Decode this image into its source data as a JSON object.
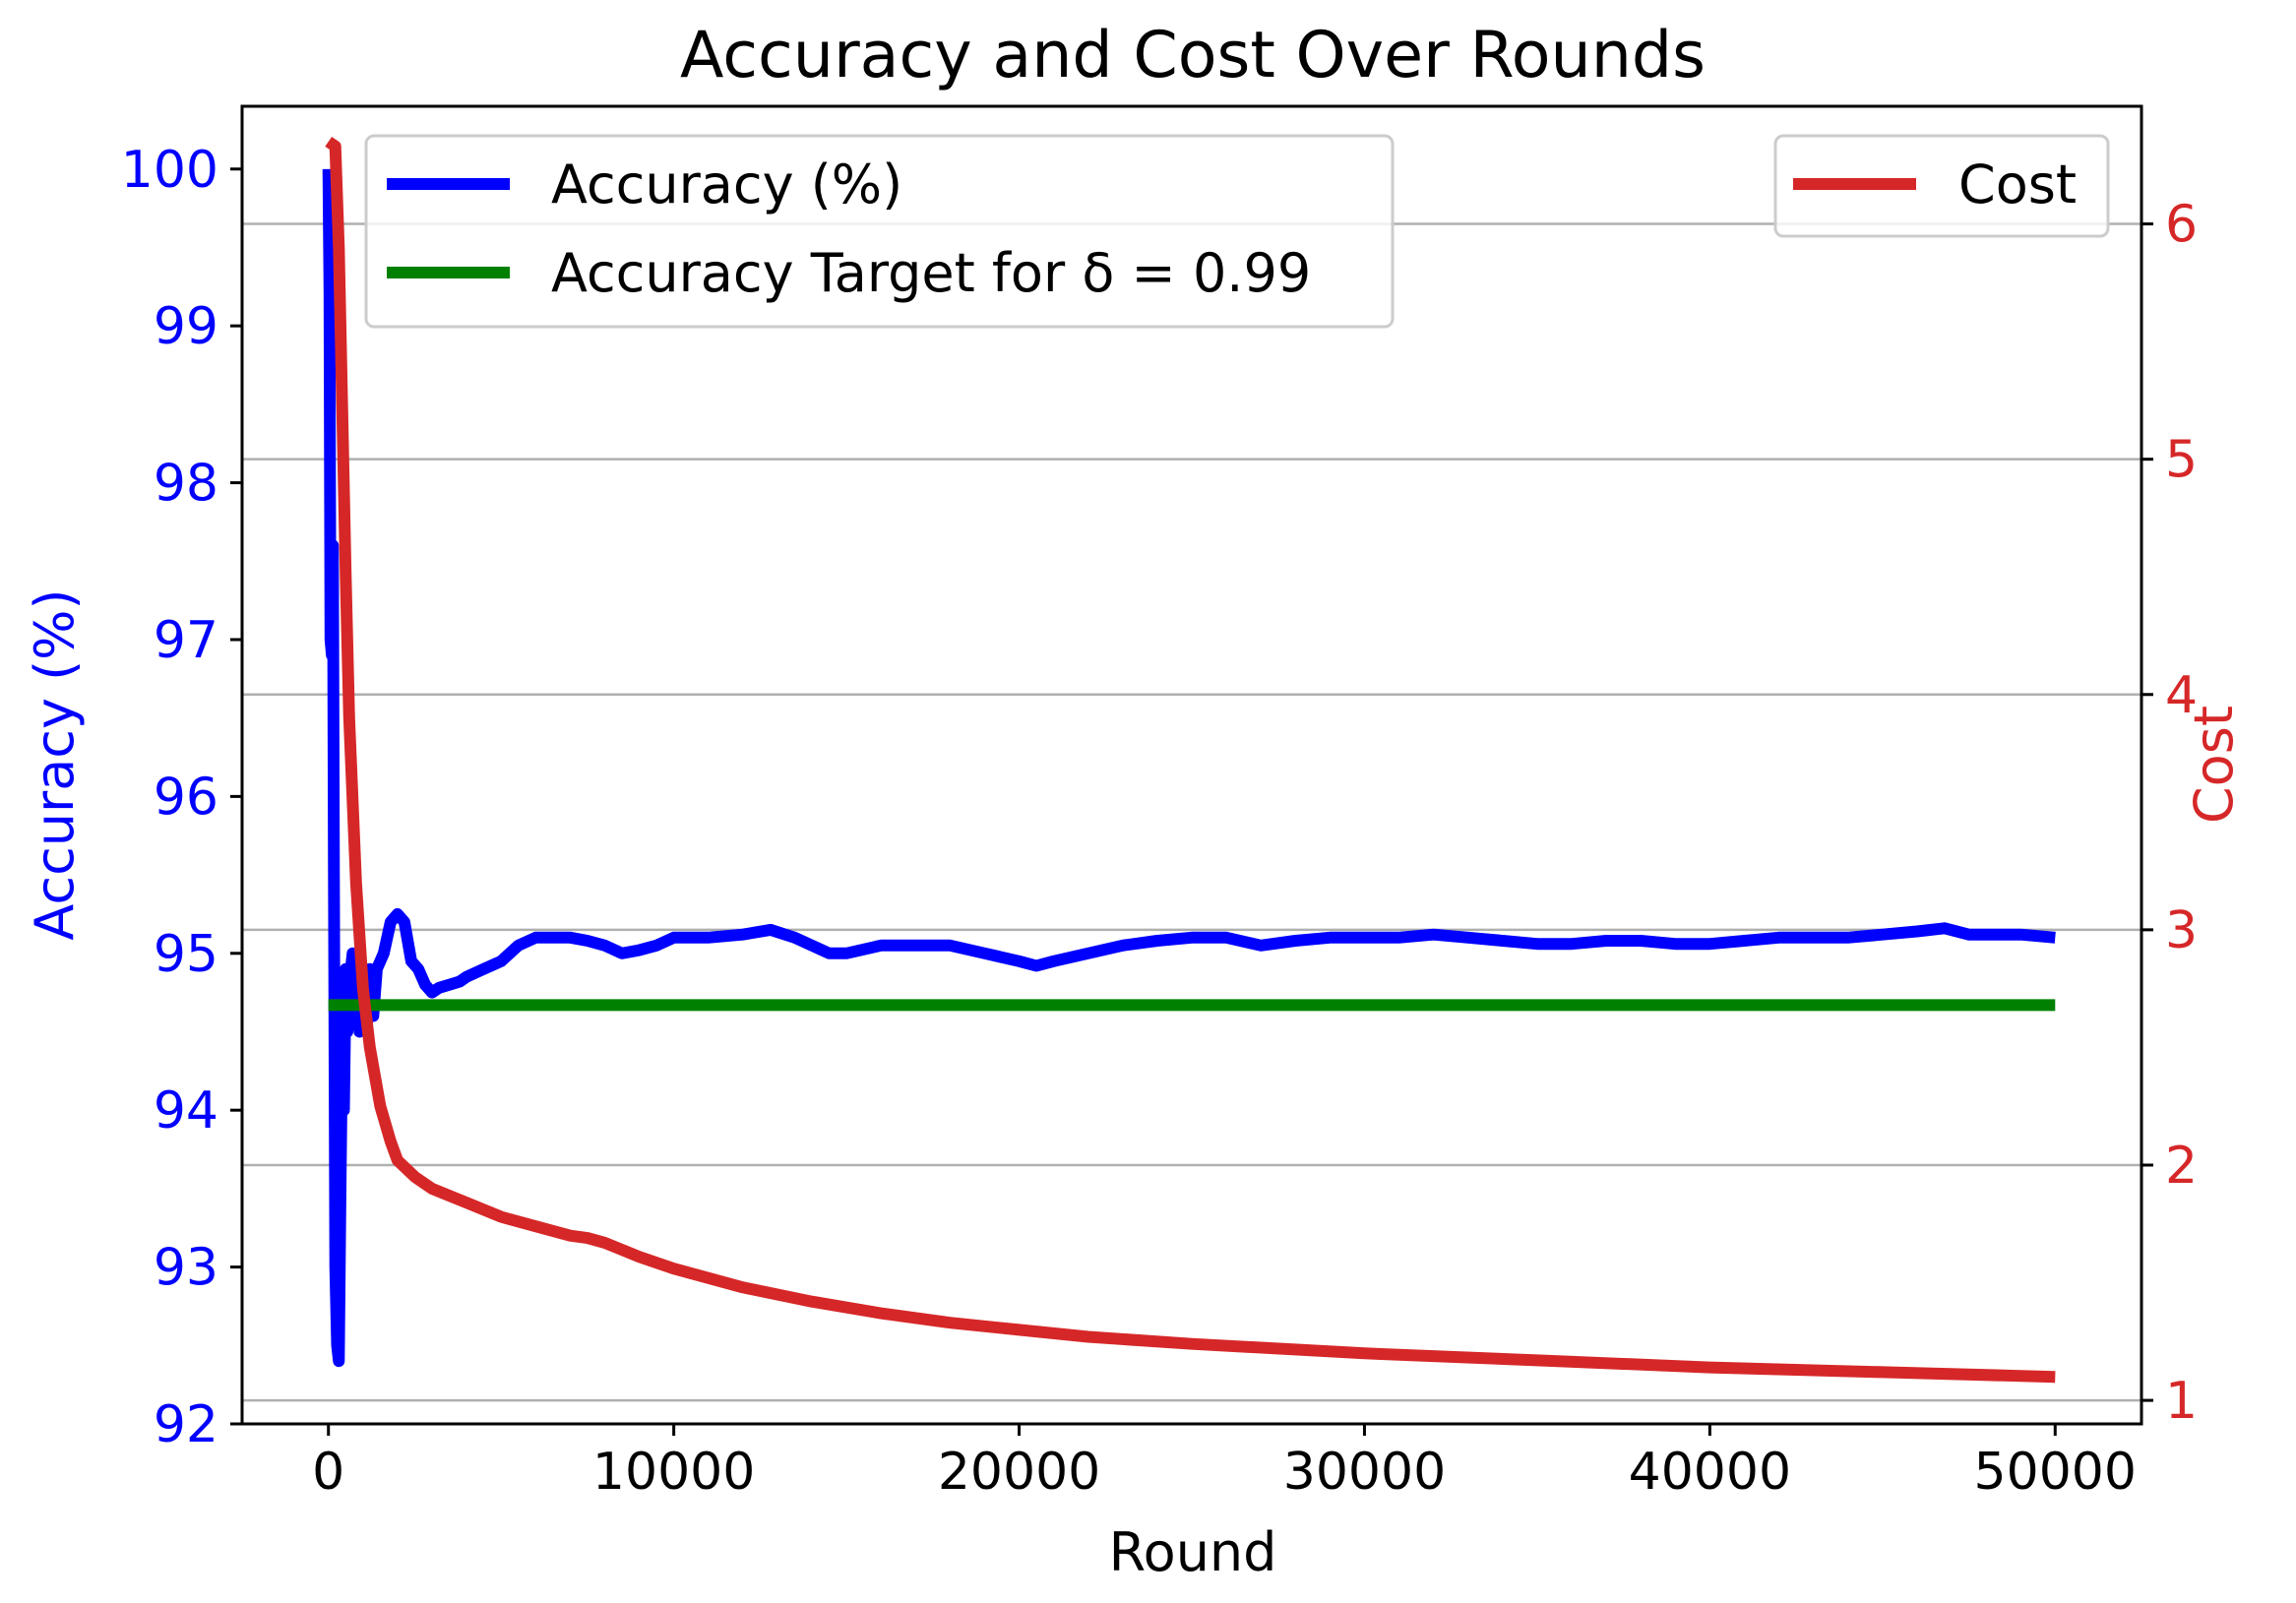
{
  "chart_data": {
    "type": "line",
    "title": "Accuracy and Cost Over Rounds",
    "xlabel": "Round",
    "ylabel_left": "Accuracy (%)",
    "ylabel_right": "Cost",
    "xlim": [
      -2500,
      52500
    ],
    "ylim_left": [
      92,
      100.4
    ],
    "ylim_right": [
      0.9,
      6.5
    ],
    "x_ticks": [
      0,
      10000,
      20000,
      30000,
      40000,
      50000
    ],
    "x_tick_labels": [
      "0",
      "10000",
      "20000",
      "30000",
      "40000",
      "50000"
    ],
    "y_left_ticks": [
      92,
      93,
      94,
      95,
      96,
      97,
      98,
      99,
      100
    ],
    "y_left_tick_labels": [
      "92",
      "93",
      "94",
      "95",
      "96",
      "97",
      "98",
      "99",
      "100"
    ],
    "y_right_ticks": [
      1,
      2,
      3,
      4,
      5,
      6
    ],
    "y_right_tick_labels": [
      "1",
      "2",
      "3",
      "4",
      "5",
      "6"
    ],
    "grid": "horizontal lines at right-axis ticks",
    "legend_left_placement": "upper-left",
    "legend_right_placement": "upper-right",
    "legend_left_entries": [
      "Accuracy (%)",
      "Accuracy Target for δ = 0.99"
    ],
    "legend_right_entries": [
      "Cost"
    ],
    "colors": {
      "accuracy": "#0000ff",
      "target": "#008000",
      "cost": "#d62728",
      "grid": "#b0b0b0",
      "left_axis_text": "#0000ff",
      "right_axis_text": "#d62728"
    },
    "series": [
      {
        "name": "Accuracy (%)",
        "axis": "left",
        "x": [
          0,
          30,
          60,
          100,
          130,
          160,
          200,
          250,
          300,
          350,
          400,
          450,
          500,
          550,
          600,
          700,
          800,
          900,
          1000,
          1100,
          1200,
          1300,
          1400,
          1600,
          1800,
          2000,
          2200,
          2400,
          2600,
          2800,
          3000,
          3200,
          3500,
          3800,
          4000,
          4500,
          5000,
          5500,
          6000,
          6500,
          7000,
          7500,
          8000,
          8500,
          9000,
          9500,
          10000,
          11000,
          12000,
          12800,
          13500,
          14000,
          14500,
          15000,
          16000,
          17000,
          18000,
          19000,
          20000,
          20500,
          21000,
          22000,
          23000,
          24000,
          25000,
          26000,
          27000,
          28000,
          29000,
          30000,
          31000,
          32000,
          33000,
          34000,
          35000,
          36000,
          37000,
          38000,
          39000,
          40000,
          41000,
          42000,
          43000,
          44000,
          45000,
          46000,
          46800,
          47500,
          48000,
          49000,
          50000
        ],
        "values": [
          100.0,
          99.2,
          97.0,
          96.9,
          97.6,
          95.5,
          93.0,
          92.5,
          92.4,
          93.5,
          94.5,
          94.0,
          94.9,
          94.5,
          94.8,
          95.0,
          94.7,
          94.5,
          94.7,
          94.5,
          94.9,
          94.6,
          94.9,
          95.0,
          95.2,
          95.25,
          95.2,
          94.95,
          94.9,
          94.8,
          94.75,
          94.78,
          94.8,
          94.82,
          94.85,
          94.9,
          94.95,
          95.05,
          95.1,
          95.1,
          95.1,
          95.08,
          95.05,
          95.0,
          95.02,
          95.05,
          95.1,
          95.1,
          95.12,
          95.15,
          95.1,
          95.05,
          95.0,
          95.0,
          95.05,
          95.05,
          95.05,
          95.0,
          94.95,
          94.92,
          94.95,
          95.0,
          95.05,
          95.08,
          95.1,
          95.1,
          95.05,
          95.08,
          95.1,
          95.1,
          95.1,
          95.12,
          95.1,
          95.08,
          95.06,
          95.06,
          95.08,
          95.08,
          95.06,
          95.06,
          95.08,
          95.1,
          95.1,
          95.1,
          95.12,
          95.14,
          95.16,
          95.12,
          95.12,
          95.12,
          95.1
        ]
      },
      {
        "name": "Accuracy Target for δ = 0.99",
        "axis": "left",
        "x": [
          0,
          50000
        ],
        "values": [
          94.67,
          94.67
        ]
      },
      {
        "name": "Cost",
        "axis": "right",
        "x": [
          0,
          100,
          200,
          300,
          400,
          500,
          600,
          800,
          1000,
          1200,
          1500,
          1800,
          2000,
          2500,
          3000,
          3500,
          4000,
          5000,
          6000,
          7000,
          7500,
          8000,
          9000,
          10000,
          12000,
          14000,
          16000,
          18000,
          20000,
          22000,
          25000,
          30000,
          35000,
          40000,
          45000,
          50000
        ],
        "values": [
          6.35,
          6.34,
          6.33,
          5.9,
          5.2,
          4.5,
          3.9,
          3.2,
          2.75,
          2.5,
          2.25,
          2.1,
          2.02,
          1.95,
          1.9,
          1.87,
          1.84,
          1.78,
          1.74,
          1.7,
          1.69,
          1.67,
          1.61,
          1.56,
          1.48,
          1.42,
          1.37,
          1.33,
          1.3,
          1.27,
          1.24,
          1.2,
          1.17,
          1.14,
          1.12,
          1.1
        ]
      }
    ]
  }
}
